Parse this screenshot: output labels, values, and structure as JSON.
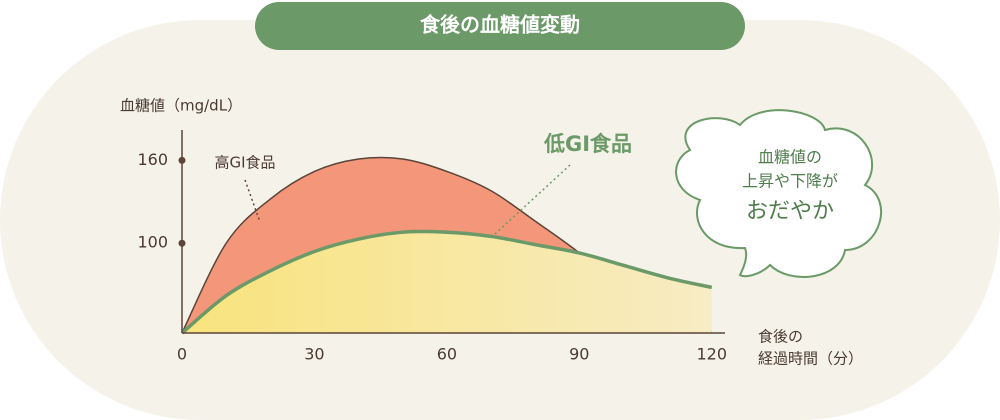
{
  "chart_data": {
    "type": "area",
    "title": "食後の血糖値変動",
    "y_label": "血糖値（mg/dL）",
    "x_label": [
      "食後の",
      "経過時間（分）"
    ],
    "x": [
      0,
      10,
      20,
      30,
      40,
      50,
      60,
      70,
      80,
      90,
      100,
      110,
      120
    ],
    "xlim": [
      0,
      123
    ],
    "xticks": [
      0,
      30,
      60,
      90,
      120
    ],
    "ylim": [
      35,
      182
    ],
    "yticks": [
      100,
      160
    ],
    "series": [
      {
        "name": "高GI食品",
        "color": "#f4967a",
        "values": [
          35,
          100,
          132,
          152,
          161,
          161,
          152,
          138,
          116,
          93,
          66,
          46,
          36
        ]
      },
      {
        "name": "低GI食品",
        "color": "#f8e79a",
        "values": [
          35,
          62,
          80,
          94,
          103,
          108,
          108,
          105,
          99,
          93,
          84,
          75,
          68
        ]
      }
    ],
    "callout": [
      "血糖値の",
      "上昇や下降が",
      "おだやか"
    ]
  }
}
